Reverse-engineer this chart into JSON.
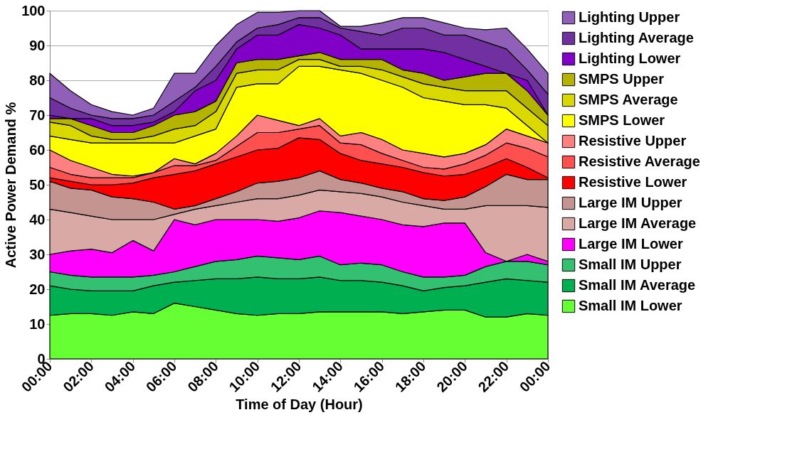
{
  "chart_data": {
    "type": "area",
    "stacked": true,
    "xlabel": "Time of Day (Hour)",
    "ylabel": "Active Power Demand %",
    "x": [
      0,
      1,
      2,
      3,
      4,
      5,
      6,
      7,
      8,
      9,
      10,
      11,
      12,
      13,
      14,
      15,
      16,
      17,
      18,
      19,
      20,
      21,
      22,
      23,
      24
    ],
    "xlim": [
      0,
      24
    ],
    "ylim": [
      0,
      100
    ],
    "xticks": [
      {
        "value": 0,
        "label": "00:00"
      },
      {
        "value": 2,
        "label": "02:00"
      },
      {
        "value": 4,
        "label": "04:00"
      },
      {
        "value": 6,
        "label": "06:00"
      },
      {
        "value": 8,
        "label": "08:00"
      },
      {
        "value": 10,
        "label": "10:00"
      },
      {
        "value": 12,
        "label": "12:00"
      },
      {
        "value": 14,
        "label": "14:00"
      },
      {
        "value": 16,
        "label": "16:00"
      },
      {
        "value": 18,
        "label": "18:00"
      },
      {
        "value": 20,
        "label": "20:00"
      },
      {
        "value": 22,
        "label": "22:00"
      },
      {
        "value": 24,
        "label": "00:00"
      }
    ],
    "yticks": [
      0,
      10,
      20,
      30,
      40,
      50,
      60,
      70,
      80,
      90,
      100
    ],
    "grid": "y",
    "legend": "right",
    "series": [
      {
        "name": "Small IM Lower",
        "color": "#66ff33",
        "values": [
          12.5,
          13,
          13,
          12.5,
          13.5,
          13,
          16,
          15,
          14,
          13,
          12.5,
          13,
          13,
          13.5,
          13.5,
          13.5,
          13.5,
          13,
          13.5,
          14,
          14,
          12,
          12,
          13,
          12.5
        ]
      },
      {
        "name": "Small IM Average",
        "color": "#00b050",
        "values": [
          8.5,
          7,
          6.5,
          7,
          6,
          8,
          6,
          7.5,
          9,
          10,
          11,
          10,
          10,
          10,
          9,
          9,
          8.5,
          8,
          6,
          6.5,
          7,
          10,
          11,
          9.5,
          9.5
        ]
      },
      {
        "name": "Small IM Upper",
        "color": "#33c070",
        "values": [
          4,
          4,
          4,
          4,
          4,
          3,
          3,
          4,
          5,
          5.5,
          6,
          6,
          5.5,
          6,
          4.5,
          5,
          5,
          4,
          4,
          3,
          3,
          4.5,
          5,
          5.5,
          5
        ]
      },
      {
        "name": "Large IM Lower",
        "color": "#ff00ff",
        "values": [
          5,
          7,
          8,
          7,
          10.5,
          7,
          15,
          12,
          12,
          11.5,
          10.5,
          10.5,
          12,
          13,
          15,
          13.5,
          13,
          13.5,
          14.5,
          15.5,
          15,
          4,
          0,
          2,
          1
        ]
      },
      {
        "name": "Large IM Average",
        "color": "#d9a9a6",
        "values": [
          13,
          11,
          9.5,
          9.5,
          6,
          9,
          1.5,
          4.5,
          4,
          5,
          6,
          6.5,
          6.5,
          6,
          6,
          6.5,
          6.5,
          6.5,
          6,
          4,
          4,
          13.5,
          16,
          14,
          15.5
        ]
      },
      {
        "name": "Large IM Upper",
        "color": "#c49490",
        "values": [
          8,
          7,
          7.5,
          6.5,
          6,
          5,
          1.5,
          1,
          2,
          3,
          4.5,
          5,
          5,
          5.5,
          3.5,
          3,
          2.5,
          3,
          2,
          2.5,
          3.5,
          5.5,
          9,
          7.5,
          8
        ]
      },
      {
        "name": "Resistive Lower",
        "color": "#ff0000",
        "values": [
          1,
          2,
          1.5,
          3.5,
          4.5,
          7,
          10,
          10,
          10,
          10,
          9.5,
          9.5,
          11.5,
          9,
          7.5,
          6.5,
          7,
          7,
          7.5,
          7,
          6.5,
          5.5,
          4.5,
          3.5,
          0.5
        ]
      },
      {
        "name": "Resistive Average",
        "color": "#ff5050",
        "values": [
          3,
          2,
          2,
          2,
          1.5,
          1.5,
          2.5,
          1.5,
          1,
          3,
          5,
          4.5,
          2.5,
          4,
          3,
          4.5,
          3,
          2,
          1.5,
          2,
          3,
          3.5,
          4.5,
          5.5,
          6
        ]
      },
      {
        "name": "Resistive Upper",
        "color": "#ff8080",
        "values": [
          5,
          4,
          3,
          1,
          0.5,
          0,
          2,
          0.5,
          2,
          3,
          5,
          3.5,
          1,
          2,
          2,
          3.5,
          4,
          3,
          4,
          3.5,
          3,
          3,
          4,
          3.5,
          4
        ]
      },
      {
        "name": "SMPS Lower",
        "color": "#ffff00",
        "values": [
          4,
          6,
          7,
          9,
          9.5,
          8.5,
          4.5,
          8,
          7,
          14,
          9,
          10.5,
          17,
          15,
          19,
          17,
          17,
          18,
          16,
          16,
          14,
          11.5,
          6,
          3,
          0
        ]
      },
      {
        "name": "SMPS Average",
        "color": "#d9d900",
        "values": [
          4,
          4,
          2,
          1,
          1,
          2,
          4,
          3,
          5,
          4,
          4,
          4,
          2,
          2,
          1,
          2,
          3,
          3,
          4,
          4,
          4,
          4,
          5,
          5,
          5
        ]
      },
      {
        "name": "SMPS Upper",
        "color": "#b3b300",
        "values": [
          1,
          2,
          3,
          2,
          2,
          3,
          4,
          4,
          3,
          3,
          3,
          3,
          1,
          2,
          2,
          2,
          3,
          2,
          3,
          2,
          4,
          5,
          5,
          5,
          3
        ]
      },
      {
        "name": "Lighting Lower",
        "color": "#8000c8",
        "values": [
          1,
          0,
          2,
          2,
          2,
          1,
          1,
          6,
          6,
          4,
          7,
          7,
          9,
          7,
          7,
          3,
          3,
          6,
          7,
          8,
          5,
          2,
          0,
          3,
          0
        ]
      },
      {
        "name": "Lighting Average",
        "color": "#7030a0",
        "values": [
          5,
          3,
          1,
          2,
          2,
          2,
          3,
          1,
          4,
          2,
          2,
          3,
          2,
          3,
          2,
          5,
          4,
          6,
          6,
          5,
          7,
          7,
          7,
          3,
          6
        ]
      },
      {
        "name": "Lighting Upper",
        "color": "#9060b8",
        "values": [
          7,
          5,
          3,
          2,
          1,
          2,
          8,
          4,
          6,
          5,
          4.5,
          3.5,
          2,
          2,
          0.5,
          1.5,
          3.5,
          3,
          3,
          3.5,
          2,
          3.5,
          6,
          6,
          6
        ]
      }
    ]
  }
}
